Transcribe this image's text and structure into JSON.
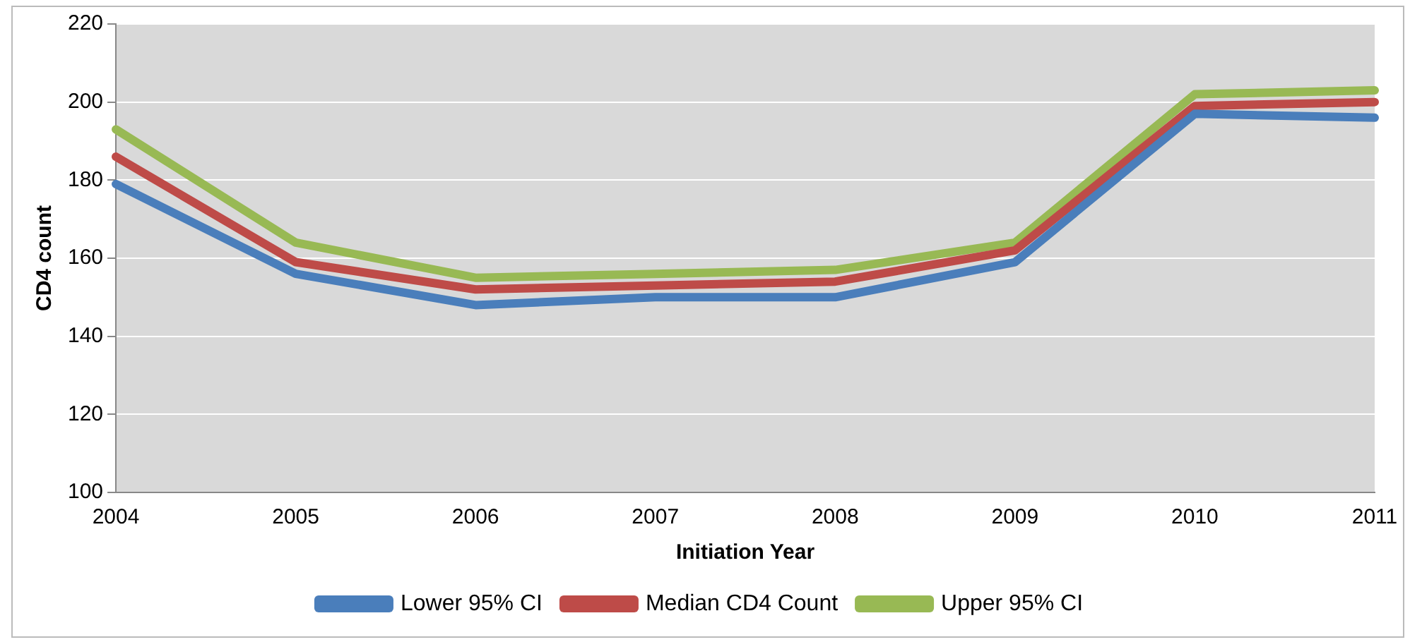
{
  "chart_data": {
    "type": "line",
    "xlabel": "Initiation Year",
    "ylabel": "CD4 count",
    "categories": [
      "2004",
      "2005",
      "2006",
      "2007",
      "2008",
      "2009",
      "2010",
      "2011"
    ],
    "series": [
      {
        "name": "Lower 95% CI",
        "color": "#4a7ebb",
        "values": [
          179,
          156,
          148,
          150,
          150,
          159,
          197,
          196
        ]
      },
      {
        "name": "Median CD4 Count",
        "color": "#be4b48",
        "values": [
          186,
          159,
          152,
          153,
          154,
          162,
          199,
          200
        ]
      },
      {
        "name": "Upper 95% CI",
        "color": "#98b954",
        "values": [
          193,
          164,
          155,
          156,
          157,
          164,
          202,
          203
        ]
      }
    ],
    "ylim": [
      100,
      220
    ],
    "yticks": [
      100,
      120,
      140,
      160,
      180,
      200,
      220
    ],
    "grid": "y",
    "legend": "bottom",
    "marker": "none",
    "line_style": "solid"
  }
}
